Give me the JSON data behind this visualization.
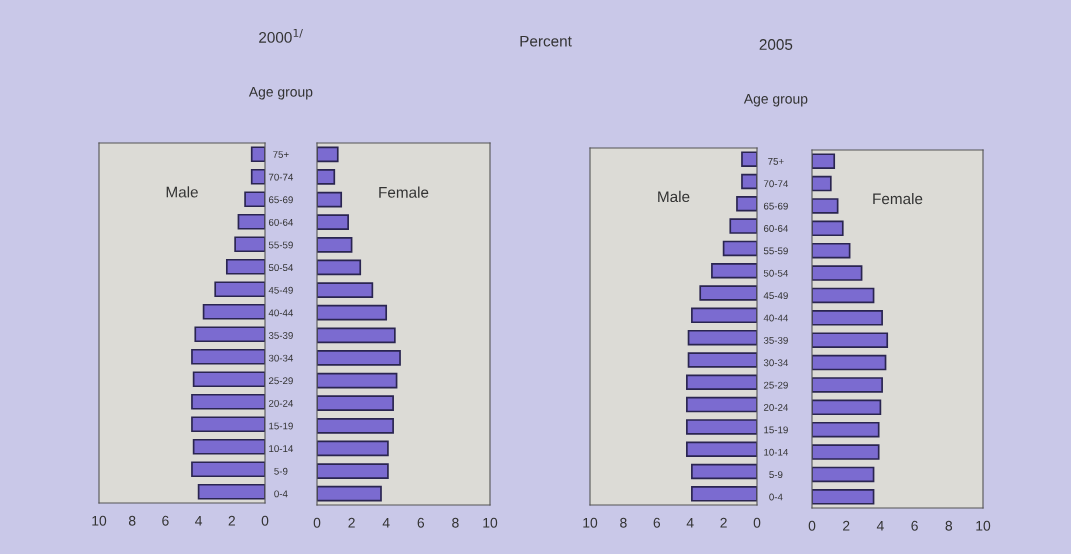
{
  "chart_data": [
    {
      "type": "bar",
      "orientation": "horizontal",
      "annotations": [
        "Male"
      ],
      "color": "#7b6bd0",
      "categories": [
        null,
        null,
        null,
        null,
        null,
        null,
        null,
        null,
        null,
        null,
        null,
        null,
        null,
        null,
        null,
        null
      ],
      "values": [
        0.8,
        0.8,
        1.2,
        1.6,
        1.8,
        2.3,
        3.0,
        3.7,
        4.2,
        4.4,
        4.3,
        4.4,
        4.4,
        4.3,
        4.4,
        4.0
      ],
      "xlim": [
        10,
        0
      ],
      "xticks": [
        10,
        8,
        6,
        4,
        2,
        0
      ]
    },
    {
      "type": "bar",
      "orientation": "horizontal",
      "title": "2000$^{1/}$",
      "ylabel": "Age group",
      "annotations": [
        "Female"
      ],
      "color": "#7b6bd0",
      "categories": [
        "75+",
        "70-74",
        "65-69",
        "60-64",
        "55-59",
        "50-54",
        "45-49",
        "40-44",
        "35-39",
        "30-34",
        "25-29",
        "20-24",
        "15-19",
        "10-14",
        "5-9",
        "0-4"
      ],
      "values": [
        1.2,
        1.0,
        1.4,
        1.8,
        2.0,
        2.5,
        3.2,
        4.0,
        4.5,
        4.8,
        4.6,
        4.4,
        4.4,
        4.1,
        4.1,
        3.7
      ],
      "xlim": [
        0,
        10
      ],
      "xticks": [
        0,
        2,
        4,
        6,
        8,
        10
      ]
    },
    {
      "type": "bar",
      "orientation": "horizontal",
      "subtitle": "Percent",
      "annotations": [
        "Male"
      ],
      "color": "#7b6bd0",
      "categories": [
        null,
        null,
        null,
        null,
        null,
        null,
        null,
        null,
        null,
        null,
        null,
        null,
        null,
        null,
        null,
        null
      ],
      "values": [
        0.9,
        0.9,
        1.2,
        1.6,
        2.0,
        2.7,
        3.4,
        3.9,
        4.1,
        4.1,
        4.2,
        4.2,
        4.2,
        4.2,
        3.9,
        3.9
      ],
      "xlim": [
        10,
        0
      ],
      "xticks": [
        10,
        8,
        6,
        4,
        2,
        0
      ]
    },
    {
      "type": "bar",
      "orientation": "horizontal",
      "title": "2005",
      "ylabel": "Age group",
      "annotations": [
        "Female"
      ],
      "color": "#7b6bd0",
      "categories": [
        "75+",
        "70-74",
        "65-69",
        "60-64",
        "55-59",
        "50-54",
        "45-49",
        "40-44",
        "35-39",
        "30-34",
        "25-29",
        "20-24",
        "15-19",
        "10-14",
        "5-9",
        "0-4"
      ],
      "values": [
        1.3,
        1.1,
        1.5,
        1.8,
        2.2,
        2.9,
        3.6,
        4.1,
        4.4,
        4.3,
        4.1,
        4.0,
        3.9,
        3.9,
        3.6,
        3.6
      ],
      "xlim": [
        0,
        10
      ],
      "xticks": [
        0,
        2,
        4,
        6,
        8,
        10
      ]
    }
  ]
}
